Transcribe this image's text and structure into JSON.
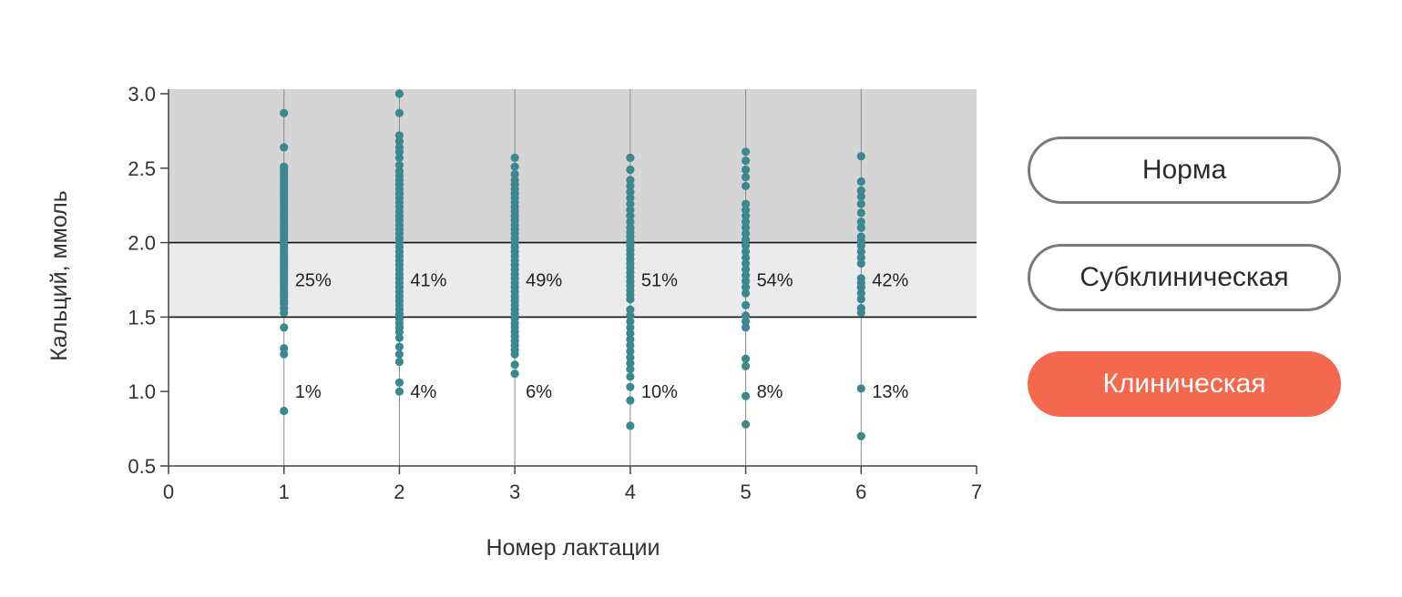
{
  "chart_data": {
    "type": "scatter",
    "xlabel": "Номер лактации",
    "ylabel": "Кальций, ммоль",
    "xlim": [
      0,
      7
    ],
    "ylim": [
      0.5,
      3.0
    ],
    "x_ticks": [
      "0",
      "1",
      "2",
      "3",
      "4",
      "5",
      "6",
      "7"
    ],
    "y_ticks": [
      "0.5",
      "1.0",
      "1.5",
      "2.0",
      "2.5",
      "3.0"
    ],
    "zones": [
      {
        "name": "Норма",
        "from": 2.0,
        "to": 3.0,
        "color": "#d5d5d5"
      },
      {
        "name": "Субклиническая",
        "from": 1.5,
        "to": 2.0,
        "color": "#ebebeb"
      },
      {
        "name": "Клиническая",
        "from": 0.5,
        "to": 1.5,
        "color": "#ffffff"
      }
    ],
    "point_color": "#3b8890",
    "groups": [
      {
        "x": 1,
        "subclinical_pct": "25%",
        "clinical_pct": "1%",
        "values": [
          2.87,
          2.64,
          2.51,
          2.49,
          2.47,
          2.45,
          2.43,
          2.41,
          2.39,
          2.37,
          2.35,
          2.33,
          2.31,
          2.29,
          2.27,
          2.25,
          2.23,
          2.21,
          2.19,
          2.17,
          2.15,
          2.13,
          2.11,
          2.09,
          2.07,
          2.05,
          2.03,
          2.01,
          1.99,
          1.97,
          1.95,
          1.93,
          1.91,
          1.89,
          1.87,
          1.85,
          1.83,
          1.81,
          1.79,
          1.77,
          1.75,
          1.73,
          1.71,
          1.69,
          1.67,
          1.65,
          1.63,
          1.61,
          1.59,
          1.56,
          1.53,
          1.43,
          1.29,
          1.25,
          0.87
        ]
      },
      {
        "x": 2,
        "subclinical_pct": "41%",
        "clinical_pct": "4%",
        "values": [
          3.0,
          2.87,
          2.72,
          2.68,
          2.64,
          2.61,
          2.57,
          2.52,
          2.48,
          2.45,
          2.42,
          2.39,
          2.36,
          2.33,
          2.3,
          2.27,
          2.24,
          2.21,
          2.18,
          2.15,
          2.12,
          2.09,
          2.06,
          2.03,
          2.0,
          1.97,
          1.94,
          1.91,
          1.88,
          1.85,
          1.82,
          1.79,
          1.76,
          1.73,
          1.7,
          1.67,
          1.64,
          1.61,
          1.58,
          1.55,
          1.52,
          1.49,
          1.46,
          1.43,
          1.4,
          1.36,
          1.3,
          1.25,
          1.2,
          1.06,
          1.0
        ]
      },
      {
        "x": 3,
        "subclinical_pct": "49%",
        "clinical_pct": "6%",
        "values": [
          2.57,
          2.51,
          2.46,
          2.42,
          2.39,
          2.36,
          2.33,
          2.3,
          2.27,
          2.24,
          2.21,
          2.18,
          2.15,
          2.12,
          2.09,
          2.06,
          2.03,
          2.0,
          1.97,
          1.94,
          1.91,
          1.88,
          1.85,
          1.82,
          1.79,
          1.76,
          1.73,
          1.7,
          1.67,
          1.64,
          1.61,
          1.58,
          1.55,
          1.52,
          1.49,
          1.46,
          1.43,
          1.4,
          1.37,
          1.34,
          1.31,
          1.28,
          1.25,
          1.18,
          1.12
        ]
      },
      {
        "x": 4,
        "subclinical_pct": "51%",
        "clinical_pct": "10%",
        "values": [
          2.57,
          2.49,
          2.42,
          2.38,
          2.34,
          2.3,
          2.26,
          2.22,
          2.18,
          2.14,
          2.1,
          2.07,
          2.04,
          2.01,
          1.98,
          1.95,
          1.92,
          1.89,
          1.86,
          1.83,
          1.8,
          1.77,
          1.74,
          1.71,
          1.68,
          1.65,
          1.62,
          1.55,
          1.51,
          1.47,
          1.43,
          1.39,
          1.35,
          1.31,
          1.27,
          1.23,
          1.19,
          1.15,
          1.1,
          1.03,
          0.94,
          0.77
        ]
      },
      {
        "x": 5,
        "subclinical_pct": "54%",
        "clinical_pct": "8%",
        "values": [
          2.61,
          2.55,
          2.49,
          2.44,
          2.38,
          2.26,
          2.22,
          2.18,
          2.14,
          2.1,
          2.06,
          2.02,
          1.98,
          1.94,
          1.9,
          1.86,
          1.82,
          1.78,
          1.74,
          1.7,
          1.66,
          1.58,
          1.51,
          1.47,
          1.43,
          1.22,
          1.17,
          0.97,
          0.78
        ]
      },
      {
        "x": 6,
        "subclinical_pct": "42%",
        "clinical_pct": "13%",
        "values": [
          2.58,
          2.41,
          2.35,
          2.31,
          2.26,
          2.2,
          2.14,
          2.1,
          2.04,
          2.01,
          1.98,
          1.94,
          1.9,
          1.86,
          1.76,
          1.73,
          1.7,
          1.66,
          1.62,
          1.56,
          1.53,
          1.02,
          0.7
        ]
      }
    ]
  },
  "legend": {
    "items": [
      {
        "label": "Норма",
        "active": false
      },
      {
        "label": "Субклиническая",
        "active": false
      },
      {
        "label": "Клиническая",
        "active": true
      }
    ]
  }
}
